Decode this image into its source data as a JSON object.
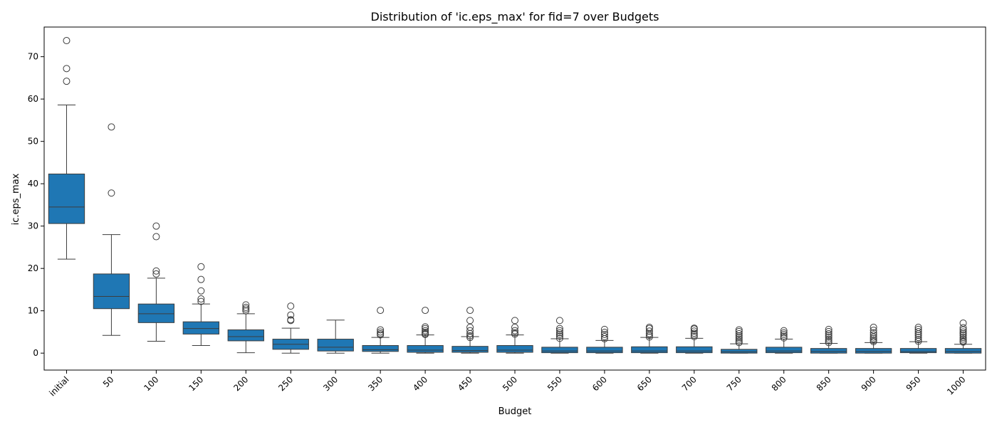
{
  "chart_data": {
    "type": "box",
    "title": "Distribution of 'ic.eps_max' for fid=7 over Budgets",
    "xlabel": "Budget",
    "ylabel": "ic.eps_max",
    "ylim": [
      -4,
      77
    ],
    "yticks": [
      0,
      10,
      20,
      30,
      40,
      50,
      60,
      70
    ],
    "box_color": "#1f77b4",
    "edge_color": "#3d3d3d",
    "categories": [
      "initial",
      "50",
      "100",
      "150",
      "200",
      "250",
      "300",
      "350",
      "400",
      "450",
      "500",
      "550",
      "600",
      "650",
      "700",
      "750",
      "800",
      "850",
      "900",
      "950",
      "1000"
    ],
    "boxes": [
      {
        "whislo": 22.2,
        "q1": 30.6,
        "med": 34.5,
        "q3": 42.3,
        "whishi": 58.6,
        "fliers": [
          64.2,
          67.2,
          73.8
        ]
      },
      {
        "whislo": 4.2,
        "q1": 10.5,
        "med": 13.4,
        "q3": 18.7,
        "whishi": 28.0,
        "fliers": [
          37.8,
          53.4
        ]
      },
      {
        "whislo": 2.8,
        "q1": 7.2,
        "med": 9.3,
        "q3": 11.6,
        "whishi": 17.7,
        "fliers": [
          18.7,
          19.4,
          27.5,
          30.0
        ]
      },
      {
        "whislo": 1.8,
        "q1": 4.5,
        "med": 5.8,
        "q3": 7.4,
        "whishi": 11.6,
        "fliers": [
          12.2,
          12.8,
          14.7,
          17.4,
          20.4
        ]
      },
      {
        "whislo": 0.1,
        "q1": 2.9,
        "med": 3.9,
        "q3": 5.5,
        "whishi": 9.3,
        "fliers": [
          10.0,
          10.4,
          10.8,
          11.4
        ]
      },
      {
        "whislo": 0.0,
        "q1": 0.9,
        "med": 2.1,
        "q3": 3.3,
        "whishi": 5.9,
        "fliers": [
          7.7,
          7.9,
          9.0,
          11.1
        ]
      },
      {
        "whislo": 0.0,
        "q1": 0.5,
        "med": 1.4,
        "q3": 3.3,
        "whishi": 7.8,
        "fliers": []
      },
      {
        "whislo": 0.0,
        "q1": 0.4,
        "med": 0.8,
        "q3": 1.8,
        "whishi": 3.7,
        "fliers": [
          4.3,
          4.6,
          5.0,
          5.5,
          10.1
        ]
      },
      {
        "whislo": 0.0,
        "q1": 0.2,
        "med": 0.7,
        "q3": 1.8,
        "whishi": 4.3,
        "fliers": [
          4.4,
          4.6,
          4.9,
          5.3,
          5.8,
          6.2,
          10.1
        ]
      },
      {
        "whislo": 0.0,
        "q1": 0.2,
        "med": 0.6,
        "q3": 1.6,
        "whishi": 3.9,
        "fliers": [
          3.7,
          4.1,
          4.6,
          5.3,
          6.1,
          7.7,
          10.1
        ]
      },
      {
        "whislo": 0.0,
        "q1": 0.2,
        "med": 0.7,
        "q3": 1.8,
        "whishi": 4.3,
        "fliers": [
          4.5,
          4.8,
          5.3,
          6.1,
          7.7
        ]
      },
      {
        "whislo": 0.0,
        "q1": 0.1,
        "med": 0.5,
        "q3": 1.4,
        "whishi": 3.4,
        "fliers": [
          3.5,
          4.0,
          4.4,
          4.8,
          5.3,
          5.8,
          7.7
        ]
      },
      {
        "whislo": 0.0,
        "q1": 0.1,
        "med": 0.5,
        "q3": 1.4,
        "whishi": 3.0,
        "fliers": [
          3.4,
          3.9,
          4.4,
          4.9,
          5.6
        ]
      },
      {
        "whislo": 0.0,
        "q1": 0.1,
        "med": 0.5,
        "q3": 1.5,
        "whishi": 3.7,
        "fliers": [
          3.8,
          4.2,
          4.6,
          5.2,
          5.8,
          6.1
        ]
      },
      {
        "whislo": 0.0,
        "q1": 0.1,
        "med": 0.5,
        "q3": 1.5,
        "whishi": 3.5,
        "fliers": [
          3.9,
          4.3,
          4.7,
          5.2,
          5.7,
          5.9
        ]
      },
      {
        "whislo": 0.0,
        "q1": 0.0,
        "med": 0.3,
        "q3": 0.9,
        "whishi": 2.2,
        "fliers": [
          2.5,
          2.9,
          3.3,
          3.7,
          4.1,
          4.6,
          5.1,
          5.5
        ]
      },
      {
        "whislo": 0.0,
        "q1": 0.1,
        "med": 0.5,
        "q3": 1.4,
        "whishi": 3.3,
        "fliers": [
          3.6,
          4.0,
          4.4,
          4.8,
          5.3
        ]
      },
      {
        "whislo": 0.0,
        "q1": 0.0,
        "med": 0.4,
        "q3": 1.1,
        "whishi": 2.3,
        "fliers": [
          2.5,
          2.9,
          3.3,
          3.8,
          4.2,
          4.6,
          5.1,
          5.6
        ]
      },
      {
        "whislo": 0.0,
        "q1": 0.0,
        "med": 0.4,
        "q3": 1.1,
        "whishi": 2.5,
        "fliers": [
          2.7,
          3.0,
          3.4,
          3.8,
          4.3,
          4.8,
          5.4,
          6.1
        ]
      },
      {
        "whislo": 0.0,
        "q1": 0.1,
        "med": 0.4,
        "q3": 1.1,
        "whishi": 2.7,
        "fliers": [
          2.8,
          3.2,
          3.7,
          4.2,
          4.6,
          5.1,
          5.6,
          6.1
        ]
      },
      {
        "whislo": 0.0,
        "q1": 0.0,
        "med": 0.4,
        "q3": 1.1,
        "whishi": 2.1,
        "fliers": [
          2.6,
          2.9,
          3.3,
          3.7,
          4.2,
          4.6,
          5.0,
          5.5,
          6.0,
          7.1
        ]
      }
    ]
  }
}
